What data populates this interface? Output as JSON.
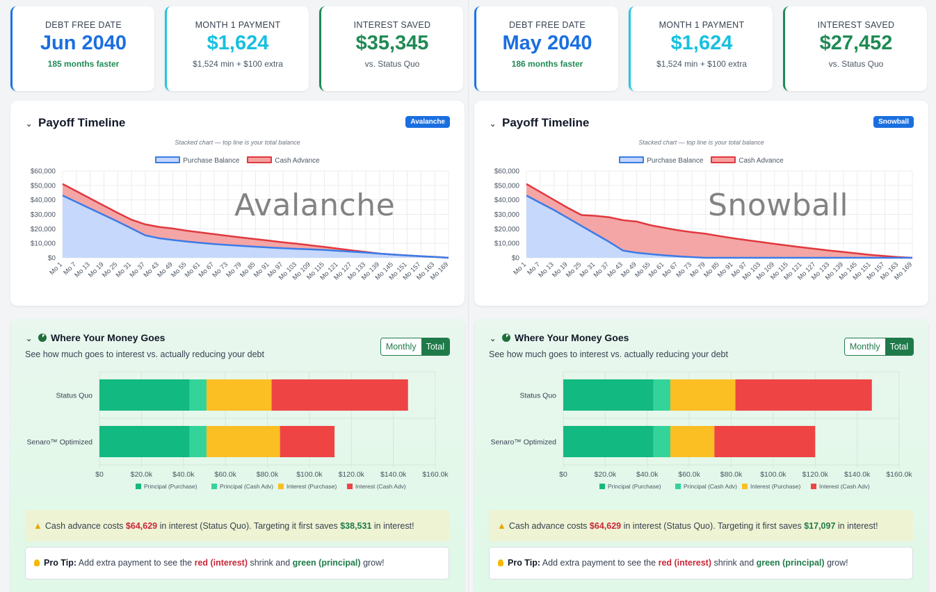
{
  "colors": {
    "purchase_fill": "#c3d6fb",
    "purchase_line": "#3b7be6",
    "cash_fill": "#f3a1a1",
    "cash_line": "#e0393e",
    "bar_pp": "#12b981",
    "bar_pc": "#34d399",
    "bar_ip": "#fbbf24",
    "bar_ic": "#ef4444"
  },
  "common": {
    "timeline_title": "Payoff Timeline",
    "timeline_note": "Stacked chart — top line is your total balance",
    "legend_purchase": "Purchase Balance",
    "legend_cash": "Cash Advance",
    "money_title": "Where Your Money Goes",
    "money_desc": "See how much goes to interest vs. actually reducing your debt",
    "toggle_monthly": "Monthly",
    "toggle_total": "Total",
    "bar_legend": [
      "Principal (Purchase)",
      "Principal (Cash Adv)",
      "Interest (Purchase)",
      "Interest (Cash Adv)"
    ],
    "alert_pre": "Cash advance costs",
    "alert_mid": "in interest (Status Quo). Targeting it first saves",
    "alert_post": "in interest!",
    "tip_label": "Pro Tip:",
    "tip_pre": "Add extra payment to see the",
    "tip_red": "red (interest)",
    "tip_mid": "shrink and",
    "tip_green": "green (principal)",
    "tip_post": "grow!"
  },
  "panels": [
    {
      "stats": [
        {
          "label": "DEBT FREE DATE",
          "value": "Jun 2040",
          "sub": "185 months faster"
        },
        {
          "label": "MONTH 1 PAYMENT",
          "value": "$1,624",
          "sub": "$1,524 min + $100 extra"
        },
        {
          "label": "INTEREST SAVED",
          "value": "$35,345",
          "sub": "vs. Status Quo"
        }
      ],
      "badge": "Avalanche",
      "watermark": "Avalanche",
      "alert_cost": "$64,629",
      "alert_saves": "$38,531"
    },
    {
      "stats": [
        {
          "label": "DEBT FREE DATE",
          "value": "May 2040",
          "sub": "186 months faster"
        },
        {
          "label": "MONTH 1 PAYMENT",
          "value": "$1,624",
          "sub": "$1,524 min + $100 extra"
        },
        {
          "label": "INTEREST SAVED",
          "value": "$27,452",
          "sub": "vs. Status Quo"
        }
      ],
      "badge": "Snowball",
      "watermark": "Snowball",
      "alert_cost": "$64,629",
      "alert_saves": "$17,097"
    }
  ],
  "chart_data": [
    {
      "type": "area",
      "title": "Payoff Timeline (Avalanche)",
      "stacked": true,
      "ylim": [
        0,
        60000
      ],
      "y_ticks": [
        "$0",
        "$10,000",
        "$20,000",
        "$30,000",
        "$40,000",
        "$50,000",
        "$60,000"
      ],
      "categories": [
        "Mo 1",
        "Mo 7",
        "Mo 13",
        "Mo 19",
        "Mo 25",
        "Mo 31",
        "Mo 37",
        "Mo 43",
        "Mo 49",
        "Mo 55",
        "Mo 61",
        "Mo 67",
        "Mo 73",
        "Mo 79",
        "Mo 85",
        "Mo 91",
        "Mo 97",
        "Mo 103",
        "Mo 109",
        "Mo 115",
        "Mo 121",
        "Mo 127",
        "Mo 133",
        "Mo 139",
        "Mo 145",
        "Mo 151",
        "Mo 157",
        "Mo 163",
        "Mo 169"
      ],
      "series": [
        {
          "name": "Purchase Balance",
          "values": [
            43000,
            38500,
            34000,
            29500,
            25000,
            20300,
            15500,
            13500,
            12300,
            11200,
            10300,
            9500,
            8800,
            8200,
            7600,
            7100,
            6600,
            6200,
            5800,
            5400,
            4800,
            4200,
            3600,
            2900,
            2200,
            1600,
            1100,
            600,
            0
          ]
        },
        {
          "name": "Cash Advance",
          "values": [
            8000,
            7500,
            7000,
            6500,
            6000,
            6000,
            7600,
            7800,
            7900,
            7500,
            7200,
            6800,
            6300,
            5800,
            5300,
            4700,
            4100,
            3500,
            2800,
            2100,
            1500,
            900,
            400,
            0,
            0,
            0,
            0,
            0,
            0
          ]
        }
      ]
    },
    {
      "type": "area",
      "title": "Payoff Timeline (Snowball)",
      "stacked": true,
      "ylim": [
        0,
        60000
      ],
      "y_ticks": [
        "$0",
        "$10,000",
        "$20,000",
        "$30,000",
        "$40,000",
        "$50,000",
        "$60,000"
      ],
      "categories": [
        "Mo 1",
        "Mo 7",
        "Mo 13",
        "Mo 19",
        "Mo 25",
        "Mo 31",
        "Mo 37",
        "Mo 43",
        "Mo 49",
        "Mo 55",
        "Mo 61",
        "Mo 67",
        "Mo 73",
        "Mo 79",
        "Mo 85",
        "Mo 91",
        "Mo 97",
        "Mo 103",
        "Mo 109",
        "Mo 115",
        "Mo 121",
        "Mo 127",
        "Mo 133",
        "Mo 139",
        "Mo 145",
        "Mo 151",
        "Mo 157",
        "Mo 163",
        "Mo 169"
      ],
      "series": [
        {
          "name": "Purchase Balance",
          "values": [
            43000,
            38000,
            33000,
            27500,
            22000,
            16500,
            11000,
            5000,
            3500,
            2500,
            1700,
            1000,
            500,
            0,
            0,
            0,
            0,
            0,
            0,
            0,
            0,
            0,
            0,
            0,
            0,
            0,
            0,
            0,
            0
          ]
        },
        {
          "name": "Cash Advance",
          "values": [
            8000,
            7500,
            7000,
            7000,
            7500,
            12500,
            17000,
            21000,
            21500,
            20000,
            19000,
            18000,
            17200,
            16600,
            15000,
            13500,
            12200,
            10900,
            9600,
            8400,
            7200,
            6100,
            5000,
            4000,
            3000,
            2000,
            1200,
            500,
            0
          ]
        }
      ]
    },
    {
      "type": "bar",
      "orientation": "horizontal",
      "stacked": true,
      "title": "Where Your Money Goes (Avalanche)",
      "categories": [
        "Status Quo",
        "Senaro™ Optimized"
      ],
      "xlim": [
        0,
        160000
      ],
      "x_ticks": [
        "$0",
        "$20.0k",
        "$40.0k",
        "$60.0k",
        "$80.0k",
        "$100.0k",
        "$120.0k",
        "$140.0k",
        "$160.0k"
      ],
      "series": [
        {
          "name": "Principal (Purchase)",
          "values": [
            43000,
            43000
          ]
        },
        {
          "name": "Principal (Cash Adv)",
          "values": [
            8000,
            8000
          ]
        },
        {
          "name": "Interest (Purchase)",
          "values": [
            31000,
            35000
          ]
        },
        {
          "name": "Interest (Cash Adv)",
          "values": [
            65000,
            26000
          ]
        }
      ]
    },
    {
      "type": "bar",
      "orientation": "horizontal",
      "stacked": true,
      "title": "Where Your Money Goes (Snowball)",
      "categories": [
        "Status Quo",
        "Senaro™ Optimized"
      ],
      "xlim": [
        0,
        160000
      ],
      "x_ticks": [
        "$0",
        "$20.0k",
        "$40.0k",
        "$60.0k",
        "$80.0k",
        "$100.0k",
        "$120.0k",
        "$140.0k",
        "$160.0k"
      ],
      "series": [
        {
          "name": "Principal (Purchase)",
          "values": [
            43000,
            43000
          ]
        },
        {
          "name": "Principal (Cash Adv)",
          "values": [
            8000,
            8000
          ]
        },
        {
          "name": "Interest (Purchase)",
          "values": [
            31000,
            21000
          ]
        },
        {
          "name": "Interest (Cash Adv)",
          "values": [
            65000,
            48000
          ]
        }
      ]
    }
  ]
}
